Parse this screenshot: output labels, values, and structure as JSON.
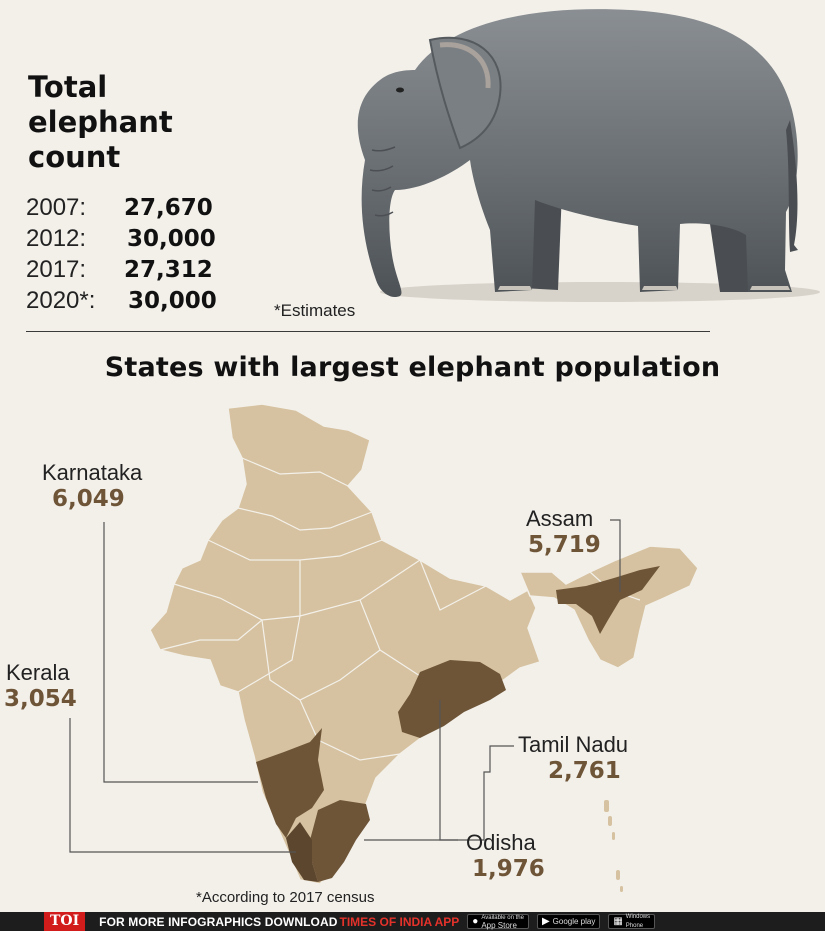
{
  "header": {
    "title_lines": [
      "Total",
      "elephant",
      "count"
    ],
    "counts": [
      {
        "year": "2007:",
        "value": "27,670"
      },
      {
        "year": "2012:",
        "value": "30,000"
      },
      {
        "year": "2017:",
        "value": "27,312"
      },
      {
        "year": "2020*:",
        "value": "30,000"
      }
    ],
    "estimates_note": "*Estimates"
  },
  "section_title": "States with largest elephant population",
  "states": [
    {
      "name": "Karnataka",
      "value": "6,049"
    },
    {
      "name": "Assam",
      "value": "5,719"
    },
    {
      "name": "Kerala",
      "value": "3,054"
    },
    {
      "name": "Tamil Nadu",
      "value": "2,761"
    },
    {
      "name": "Odisha",
      "value": "1,976"
    }
  ],
  "census_note": "*According to 2017 census",
  "colors": {
    "map_fill": "#d6c2a0",
    "highlight_fill": "#6e5538",
    "value_text": "#6e5538",
    "background": "#f3f0ea"
  },
  "footer": {
    "logo": "TOI",
    "text": "FOR MORE  INFOGRAPHICS DOWNLOAD",
    "app_name": "TIMES OF INDIA  APP",
    "stores": [
      {
        "icon": "apple-icon",
        "small": "Available on the",
        "big": "App Store"
      },
      {
        "icon": "google-play-icon",
        "small": "",
        "big": "Google play"
      },
      {
        "icon": "windows-icon",
        "small": "Windows",
        "big": "Phone"
      }
    ]
  }
}
